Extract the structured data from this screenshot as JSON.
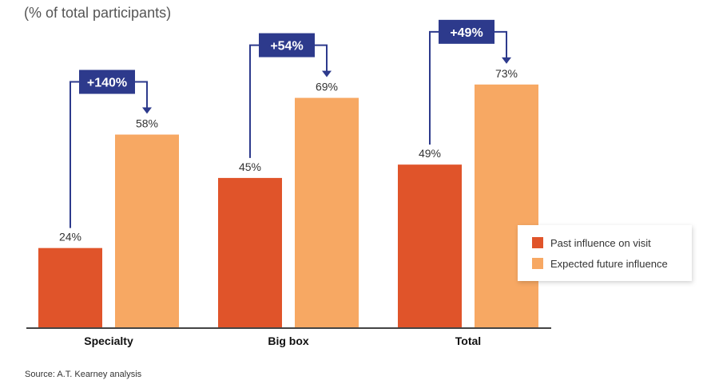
{
  "chart_data": {
    "type": "bar",
    "subtitle": "(% of total participants)",
    "categories": [
      "Specialty",
      "Big box",
      "Total"
    ],
    "series": [
      {
        "name": "Past influence on visit",
        "values": [
          24,
          45,
          49
        ],
        "labels": [
          "24%",
          "45%",
          "49%"
        ]
      },
      {
        "name": "Expected future influence",
        "values": [
          58,
          69,
          73
        ],
        "labels": [
          "58%",
          "69%",
          "73%"
        ]
      }
    ],
    "changes": [
      "+140%",
      "+54%",
      "+49%"
    ],
    "ylim": [
      0,
      100
    ],
    "grid": false,
    "legend": "right",
    "colors": {
      "past": "#E0542A",
      "future": "#F7A863",
      "badge": "#2D3A8C",
      "axis": "#444444"
    },
    "source": "Source: A.T. Kearney analysis"
  }
}
